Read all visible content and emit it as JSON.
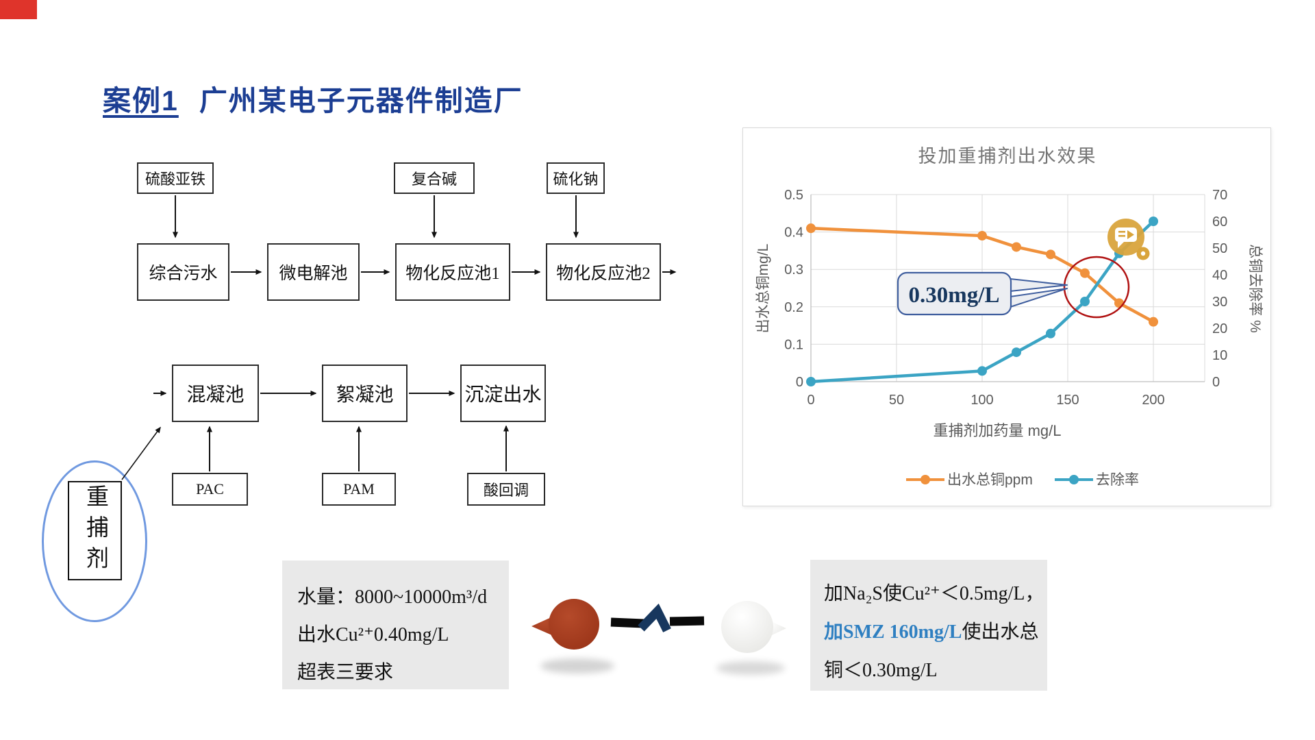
{
  "page": {
    "corner_flag_color": "#DF342B",
    "title_color": "#1C3E93"
  },
  "title": {
    "case_label": "案例1",
    "rest": "广州某电子元器件制造厂"
  },
  "flow": {
    "top_boxes": [
      "硫酸亚铁",
      "复合碱",
      "硫化钠"
    ],
    "process_boxes": [
      "综合污水",
      "微电解池",
      "物化反应池1",
      "物化反应池2"
    ],
    "mixing_boxes": [
      "混凝池",
      "絮凝池",
      "沉淀出水"
    ],
    "dosing_boxes": [
      "PAC",
      "PAM",
      "酸回调"
    ],
    "capture_agent_label": "重捕剂"
  },
  "info_left": {
    "line1": "水量：8000~10000m³/d",
    "line2": "出水Cu²⁺0.40mg/L",
    "line3": "超表三要求"
  },
  "info_right": {
    "line1": "加Na₂S使Cu²⁺＜0.5mg/L，",
    "line2_highlight": "加SMZ 160mg/L",
    "line2_rest": "使出水总",
    "line3": "铜＜0.30mg/L",
    "highlight_color": "#2E7FC1"
  },
  "annotations": {
    "callout_text": "0.30mg/L"
  },
  "chart_data": {
    "type": "line",
    "title": "投加重捕剂出水效果",
    "x": [
      0,
      100,
      120,
      140,
      160,
      180,
      200
    ],
    "series": [
      {
        "name": "出水总铜ppm",
        "axis": "left",
        "color": "#F0913C",
        "values": [
          0.41,
          0.39,
          0.36,
          0.34,
          0.29,
          0.21,
          0.16
        ]
      },
      {
        "name": "去除率",
        "axis": "right",
        "color": "#3BA4C4",
        "values": [
          0,
          4,
          11,
          18,
          30,
          48,
          60
        ]
      }
    ],
    "xlabel": "重捕剂加药量 mg/L",
    "ylabel_left": "出水总铜mg/L",
    "ylabel_right": "总铜去除率 %",
    "xlim": [
      0,
      230
    ],
    "ylim_left": [
      0,
      0.5
    ],
    "ylim_right": [
      0,
      70
    ],
    "x_ticks": [
      0,
      50,
      100,
      150,
      200
    ],
    "y_ticks_left": [
      0,
      0.1,
      0.2,
      0.3,
      0.4,
      0.5
    ],
    "y_ticks_right": [
      0,
      10,
      20,
      30,
      40,
      50,
      60,
      70
    ],
    "grid": true,
    "legend_position": "bottom"
  }
}
